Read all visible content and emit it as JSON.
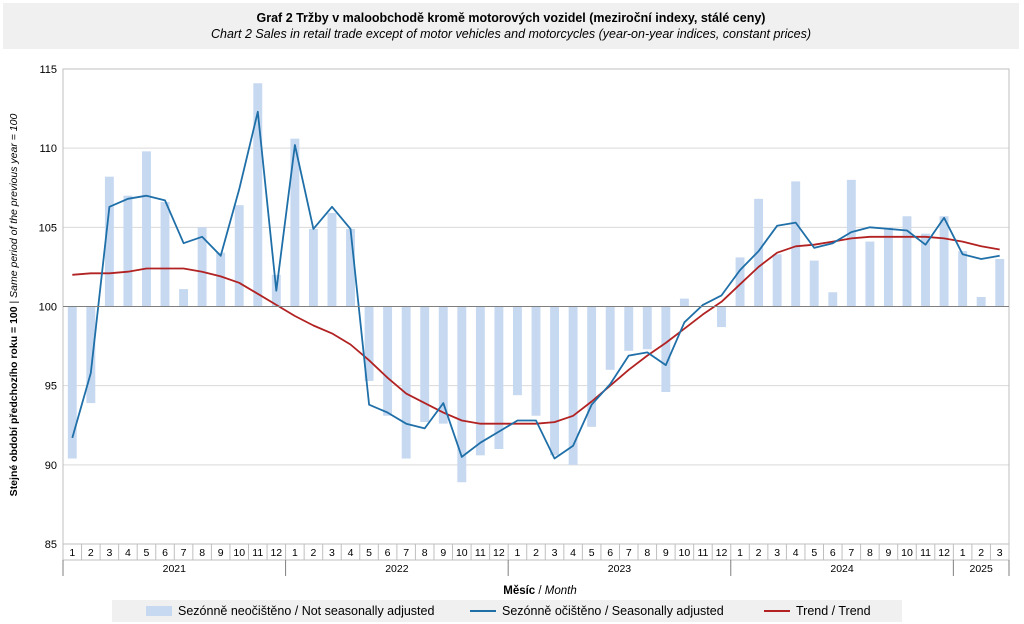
{
  "title": "Graf 2 Tržby v maloobchodě kromě motorových  vozidel (meziroční indexy, stálé ceny)",
  "subtitle": "Chart  2 Sales in retail trade except of motor vehicles and motorcycles (year-on-year  indices, constant prices)",
  "colors": {
    "nsa": "#c6d9f1",
    "sa": "#1f6fa8",
    "trend": "#b22222"
  },
  "chart_data": {
    "type": "bar",
    "ylabel_bold": "Stejné období předchozího roku = 100",
    "ylabel_italic": "Same period of the previous year = 100",
    "xlabel_bold": "Měsíc",
    "xlabel_italic": "Month",
    "ylim": [
      85,
      115
    ],
    "yticks": [
      85,
      90,
      95,
      100,
      105,
      110,
      115
    ],
    "baseline": 100,
    "grid": true,
    "legend_position": "bottom",
    "months": [
      "1",
      "2",
      "3",
      "4",
      "5",
      "6",
      "7",
      "8",
      "9",
      "10",
      "11",
      "12",
      "1",
      "2",
      "3",
      "4",
      "5",
      "6",
      "7",
      "8",
      "9",
      "10",
      "11",
      "12",
      "1",
      "2",
      "3",
      "4",
      "5",
      "6",
      "7",
      "8",
      "9",
      "10",
      "11",
      "12",
      "1",
      "2",
      "3",
      "4",
      "5",
      "6",
      "7",
      "8",
      "9",
      "10",
      "11",
      "12",
      "1",
      "2",
      "3"
    ],
    "years": [
      {
        "label": "2021",
        "start": 0,
        "count": 12
      },
      {
        "label": "2022",
        "start": 12,
        "count": 12
      },
      {
        "label": "2023",
        "start": 24,
        "count": 12
      },
      {
        "label": "2024",
        "start": 36,
        "count": 12
      },
      {
        "label": "2025",
        "start": 48,
        "count": 3
      }
    ],
    "series": [
      {
        "name": "Sezónně neočištěno / Not seasonally adjusted",
        "kind": "bar",
        "values": [
          90.4,
          93.9,
          108.2,
          107.0,
          109.8,
          106.6,
          101.1,
          105.0,
          103.4,
          106.4,
          114.1,
          102.0,
          110.6,
          104.9,
          105.9,
          104.9,
          95.3,
          93.1,
          90.4,
          92.7,
          92.6,
          88.9,
          90.6,
          91.0,
          94.4,
          93.1,
          90.6,
          90.0,
          92.4,
          96.0,
          97.2,
          97.3,
          94.6,
          100.5,
          100.0,
          98.7,
          103.1,
          106.8,
          103.3,
          107.9,
          102.9,
          100.9,
          108.0,
          104.1,
          105.0,
          105.7,
          104.6,
          105.7,
          103.5,
          100.6,
          103.0
        ]
      },
      {
        "name": "Sezónně očištěno / Seasonally adjusted",
        "kind": "line",
        "values": [
          91.7,
          95.8,
          106.3,
          106.8,
          107.0,
          106.7,
          104.0,
          104.4,
          103.2,
          107.4,
          112.3,
          101.0,
          110.2,
          104.9,
          106.3,
          104.9,
          93.8,
          93.3,
          92.6,
          92.3,
          93.9,
          90.5,
          91.4,
          92.1,
          92.8,
          92.8,
          90.4,
          91.2,
          93.8,
          95.1,
          96.9,
          97.1,
          96.3,
          99.0,
          100.1,
          100.7,
          102.3,
          103.5,
          105.1,
          105.3,
          103.7,
          104.0,
          104.7,
          105.0,
          104.9,
          104.8,
          103.9,
          105.6,
          103.3,
          103.0,
          103.2
        ]
      },
      {
        "name": "Trend / Trend",
        "kind": "line",
        "values": [
          102.0,
          102.1,
          102.1,
          102.2,
          102.4,
          102.4,
          102.4,
          102.2,
          101.9,
          101.5,
          100.8,
          100.1,
          99.4,
          98.8,
          98.3,
          97.6,
          96.6,
          95.5,
          94.5,
          93.9,
          93.3,
          92.8,
          92.6,
          92.6,
          92.6,
          92.6,
          92.7,
          93.1,
          94.0,
          95.0,
          96.0,
          96.9,
          97.7,
          98.6,
          99.5,
          100.3,
          101.4,
          102.5,
          103.4,
          103.8,
          103.9,
          104.1,
          104.3,
          104.4,
          104.4,
          104.4,
          104.4,
          104.3,
          104.1,
          103.8,
          103.6
        ]
      }
    ]
  }
}
